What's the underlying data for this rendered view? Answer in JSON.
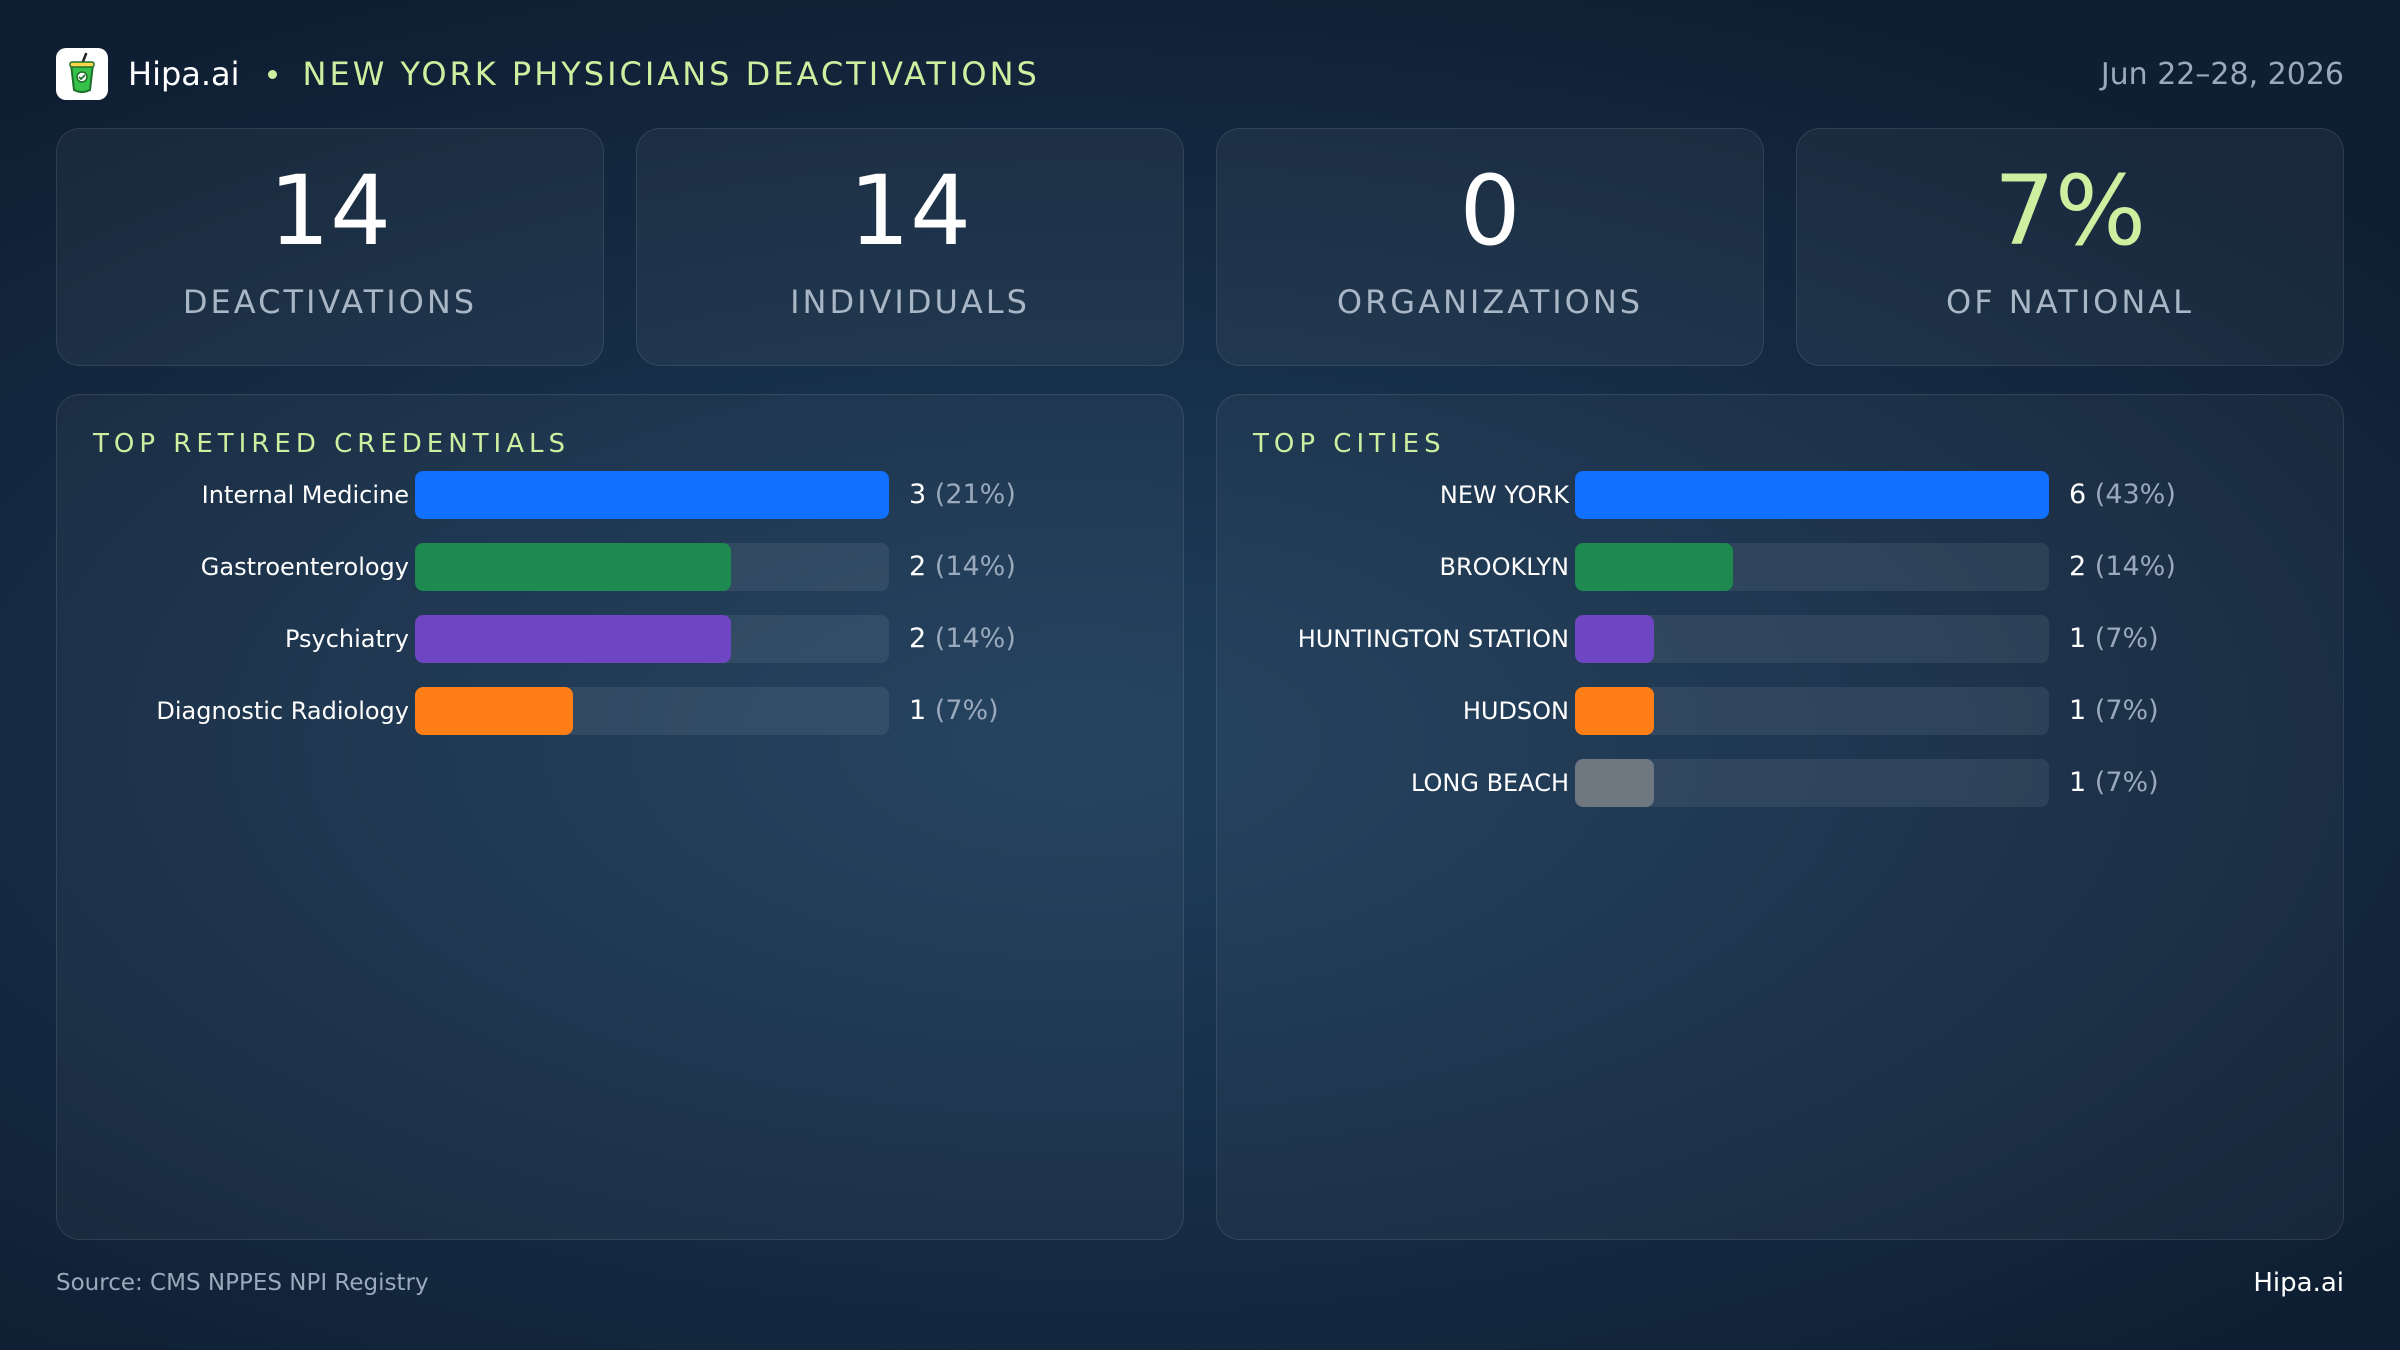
{
  "header": {
    "brand": "Hipa.ai",
    "title": "NEW YORK PHYSICIANS DEACTIVATIONS",
    "date_range": "Jun 22–28, 2026",
    "logo_icon": "drink-cup-icon"
  },
  "stats": [
    {
      "value": "14",
      "label": "DEACTIVATIONS"
    },
    {
      "value": "14",
      "label": "INDIVIDUALS"
    },
    {
      "value": "0",
      "label": "ORGANIZATIONS"
    },
    {
      "value": "7%",
      "label": "OF NATIONAL"
    }
  ],
  "colors": {
    "accent": "#cdef9f",
    "blue": "#1270ff",
    "green": "#1e8a4f",
    "purple": "#6e45c2",
    "orange": "#ff7f16",
    "gray": "#6f7780"
  },
  "chart_data": [
    {
      "type": "bar",
      "orientation": "horizontal",
      "title": "TOP RETIRED CREDENTIALS",
      "categories": [
        "Internal Medicine",
        "Gastroenterology",
        "Psychiatry",
        "Diagnostic Radiology"
      ],
      "values": [
        3,
        2,
        2,
        1
      ],
      "value_labels": [
        "3",
        "2",
        "2",
        "1"
      ],
      "percent_labels": [
        "(21%)",
        "(14%)",
        "(14%)",
        "(7%)"
      ],
      "colors": [
        "#1270ff",
        "#1e8a4f",
        "#6e45c2",
        "#ff7f16"
      ],
      "xlim": [
        0,
        3
      ],
      "grid": false
    },
    {
      "type": "bar",
      "orientation": "horizontal",
      "title": "TOP CITIES",
      "categories": [
        "NEW YORK",
        "BROOKLYN",
        "HUNTINGTON STATION",
        "HUDSON",
        "LONG BEACH"
      ],
      "values": [
        6,
        2,
        1,
        1,
        1
      ],
      "value_labels": [
        "6",
        "2",
        "1",
        "1",
        "1"
      ],
      "percent_labels": [
        "(43%)",
        "(14%)",
        "(7%)",
        "(7%)",
        "(7%)"
      ],
      "colors": [
        "#1270ff",
        "#1e8a4f",
        "#6e45c2",
        "#ff7f16",
        "#6f7780"
      ],
      "xlim": [
        0,
        6
      ],
      "grid": false
    }
  ],
  "footer": {
    "source": "Source: CMS NPPES NPI Registry",
    "brand": "Hipa.ai"
  }
}
